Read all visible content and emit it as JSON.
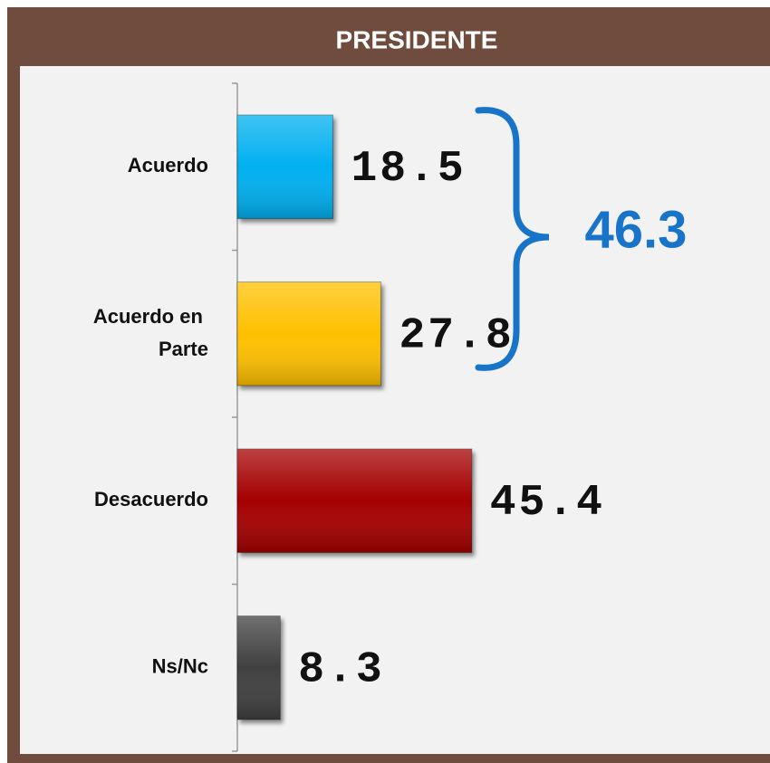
{
  "chart_data": {
    "type": "bar",
    "orientation": "horizontal",
    "title": "PRESIDENTE",
    "categories": [
      "Acuerdo",
      "Acuerdo en Parte",
      "Desacuerdo",
      "Ns/Nc"
    ],
    "values": [
      18.5,
      27.8,
      45.4,
      8.3
    ],
    "colors": [
      "#00b0f0",
      "#ffc000",
      "#a50000",
      "#404040"
    ],
    "xlim": [
      0,
      100
    ],
    "annotations": [
      {
        "text": "46.3",
        "color": "#1874c8"
      }
    ]
  }
}
